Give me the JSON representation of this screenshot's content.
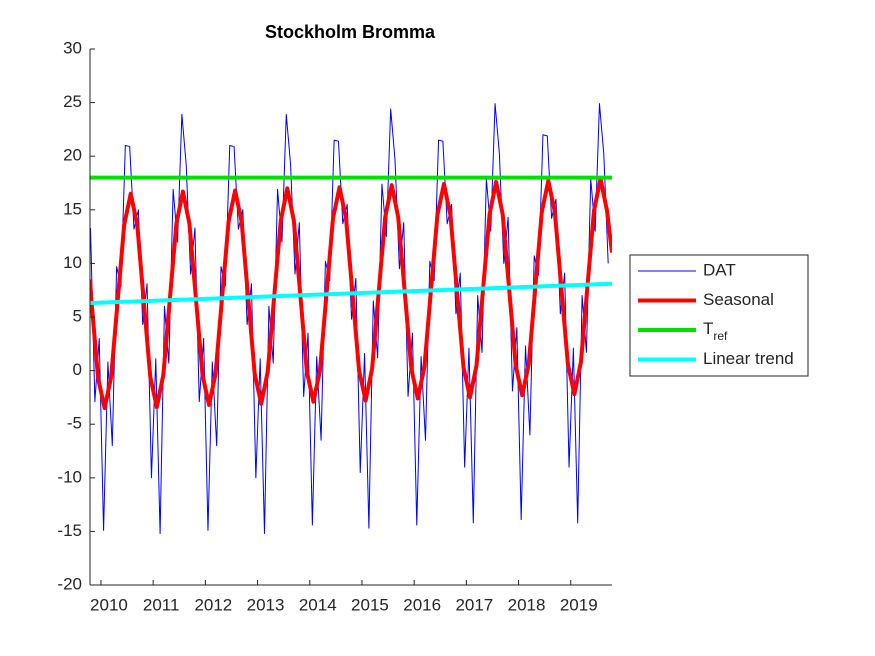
{
  "chart_data": {
    "type": "line",
    "title": "Stockholm Bromma",
    "xlim": [
      2009.79,
      2019.79
    ],
    "xticks": [
      2010,
      2011,
      2012,
      2013,
      2014,
      2015,
      2016,
      2017,
      2018,
      2019
    ],
    "ylim": [
      -20,
      30
    ],
    "yticks": [
      -20,
      -15,
      -10,
      -5,
      0,
      5,
      10,
      15,
      20,
      25,
      30
    ],
    "grid": false,
    "legend": "right",
    "series": [
      {
        "name": "DAT",
        "color": "#0000ff",
        "linewidth": 1,
        "x": [
          2009.8,
          2009.883,
          2009.967,
          2010.05,
          2010.133,
          2010.217,
          2010.3,
          2010.383,
          2010.467,
          2010.55,
          2010.633,
          2010.717,
          2010.8,
          2010.883,
          2010.967,
          2011.05,
          2011.133,
          2011.217,
          2011.3,
          2011.383,
          2011.467,
          2011.55,
          2011.633,
          2011.717,
          2011.8,
          2011.883,
          2011.967,
          2012.05,
          2012.133,
          2012.217,
          2012.3,
          2012.383,
          2012.467,
          2012.55,
          2012.633,
          2012.717,
          2012.8,
          2012.883,
          2012.967,
          2013.05,
          2013.133,
          2013.217,
          2013.3,
          2013.383,
          2013.467,
          2013.55,
          2013.633,
          2013.717,
          2013.8,
          2013.883,
          2013.967,
          2014.05,
          2014.133,
          2014.217,
          2014.3,
          2014.383,
          2014.467,
          2014.55,
          2014.633,
          2014.717,
          2014.8,
          2014.883,
          2014.967,
          2015.05,
          2015.133,
          2015.217,
          2015.3,
          2015.383,
          2015.467,
          2015.55,
          2015.633,
          2015.717,
          2015.8,
          2015.883,
          2015.967,
          2016.05,
          2016.133,
          2016.217,
          2016.3,
          2016.383,
          2016.467,
          2016.55,
          2016.633,
          2016.717,
          2016.8,
          2016.883,
          2016.967,
          2017.05,
          2017.133,
          2017.217,
          2017.3,
          2017.383,
          2017.467,
          2017.55,
          2017.633,
          2017.717,
          2017.8,
          2017.883,
          2017.967,
          2018.05,
          2018.133,
          2018.217,
          2018.3,
          2018.383,
          2018.467,
          2018.55,
          2018.633,
          2018.717,
          2018.8,
          2018.883,
          2018.967,
          2019.05,
          2019.133,
          2019.217,
          2019.3,
          2019.383,
          2019.467,
          2019.55,
          2019.633,
          2019.717
        ],
        "values": [
          13.3,
          -2.9,
          3,
          -14.9,
          0.8,
          -7,
          9.7,
          7.9,
          21,
          20.9,
          13.2,
          15,
          4.3,
          8.1,
          -10,
          1.1,
          -15.2,
          6,
          0.7,
          16.9,
          12,
          23.9,
          19.2,
          9,
          13.3,
          -2.9,
          3,
          -14.9,
          0.8,
          -7,
          9.7,
          7.9,
          21,
          20.9,
          13.2,
          15,
          4.3,
          8.1,
          -10,
          1.1,
          -15.2,
          6,
          0.7,
          16.9,
          12,
          23.9,
          19.2,
          9,
          13.8,
          -2.4,
          3.5,
          -14.4,
          1.3,
          -6.5,
          10.2,
          8.4,
          21.5,
          21.4,
          13.7,
          15.5,
          4.8,
          8.6,
          -9.5,
          1.6,
          -14.7,
          6.5,
          1.2,
          17.4,
          12.5,
          24.4,
          19.7,
          9.5,
          13.8,
          -2.4,
          3.5,
          -14.4,
          1.3,
          -6.5,
          10.2,
          8.4,
          21.5,
          21.4,
          13.7,
          15.5,
          5.3,
          9.1,
          -9,
          2.1,
          -14.2,
          7,
          1.7,
          17.9,
          13,
          24.9,
          20.2,
          10,
          14.3,
          -1.9,
          4,
          -13.9,
          2.3,
          -6,
          10.7,
          8.9,
          22,
          21.9,
          14.2,
          16,
          5.3,
          9.1,
          -9,
          2.1,
          -14.2,
          7,
          1.7,
          17.9,
          13,
          24.9,
          20.2,
          10
        ]
      },
      {
        "name": "Seasonal",
        "color": "#ff0000",
        "linewidth": 4,
        "x": [
          2009.79,
          2009.82,
          2009.945,
          2010.07,
          2010.195,
          2010.32,
          2010.445,
          2010.57,
          2010.695,
          2010.82,
          2010.945,
          2011.07,
          2011.195,
          2011.32,
          2011.445,
          2011.57,
          2011.695,
          2011.82,
          2011.945,
          2012.07,
          2012.195,
          2012.32,
          2012.445,
          2012.57,
          2012.695,
          2012.82,
          2012.945,
          2013.07,
          2013.195,
          2013.32,
          2013.445,
          2013.57,
          2013.695,
          2013.82,
          2013.945,
          2014.07,
          2014.195,
          2014.32,
          2014.445,
          2014.57,
          2014.695,
          2014.82,
          2014.945,
          2015.07,
          2015.195,
          2015.32,
          2015.445,
          2015.57,
          2015.695,
          2015.82,
          2015.945,
          2016.07,
          2016.195,
          2016.32,
          2016.445,
          2016.57,
          2016.695,
          2016.82,
          2016.945,
          2017.07,
          2017.195,
          2017.32,
          2017.445,
          2017.57,
          2017.695,
          2017.82,
          2017.945,
          2018.07,
          2018.195,
          2018.32,
          2018.445,
          2018.57,
          2018.695,
          2018.82,
          2018.945,
          2019.07,
          2019.195,
          2019.32,
          2019.445,
          2019.57,
          2019.695,
          2019.79
        ],
        "values": [
          8.5,
          6.4,
          -0.7,
          -3.5,
          -0.6,
          6.5,
          13.6,
          16.5,
          13.6,
          6.5,
          -0.6,
          -3.4,
          -0.4,
          6.7,
          13.7,
          16.7,
          13.7,
          6.7,
          -0.4,
          -3.2,
          -0.3,
          6.8,
          13.9,
          16.8,
          13.9,
          6.8,
          -0.3,
          -3.1,
          -0.1,
          7.0,
          14.0,
          17.0,
          14.0,
          7.0,
          -0.1,
          -2.9,
          0.0,
          7.1,
          14.2,
          17.1,
          14.2,
          7.1,
          0.0,
          -2.8,
          0.2,
          7.3,
          14.3,
          17.3,
          14.3,
          7.3,
          0.2,
          -2.6,
          0.3,
          7.4,
          14.5,
          17.4,
          14.5,
          7.4,
          0.3,
          -2.5,
          0.5,
          7.6,
          14.6,
          17.6,
          14.6,
          7.6,
          0.5,
          -2.3,
          0.6,
          7.7,
          14.8,
          17.7,
          14.8,
          7.7,
          0.6,
          -2.2,
          0.8,
          7.9,
          14.9,
          17.9,
          14.9,
          11.0
        ]
      },
      {
        "name": "Tref",
        "color": "#00e000",
        "linewidth": 4,
        "x": [
          2009.79,
          2019.79
        ],
        "values": [
          18,
          18
        ]
      },
      {
        "name": "Linear trend",
        "color": "#00ffff",
        "linewidth": 4,
        "x": [
          2009.79,
          2019.79
        ],
        "values": [
          6.3,
          8.1
        ]
      }
    ]
  }
}
